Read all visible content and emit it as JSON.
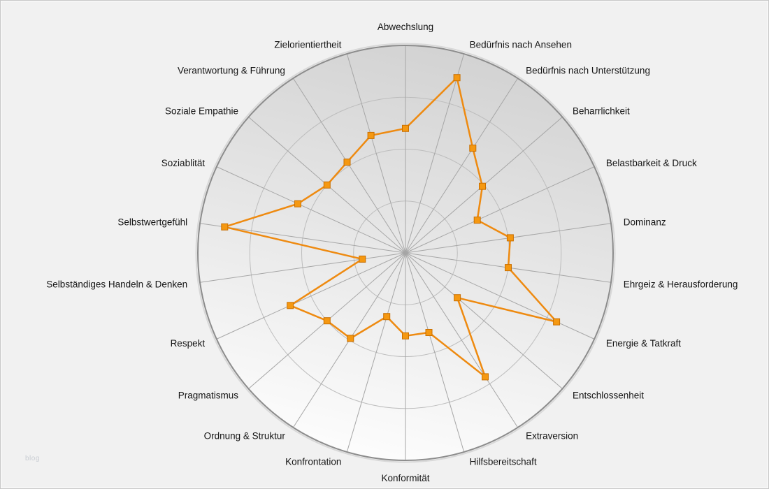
{
  "watermark": "blog",
  "chart_data": {
    "type": "radar",
    "title": "",
    "legend": "none",
    "grid": "on",
    "rings": 4,
    "ylim": [
      0,
      100
    ],
    "categories": [
      "Abwechslung",
      "Bedürfnis nach Ansehen",
      "Bedürfnis nach Unterstützung",
      "Beharrlichkeit",
      "Belastbarkeit & Druck",
      "Dominanz",
      "Ehrgeiz & Herausforderung",
      "Energie & Tatkraft",
      "Entschlossenheit",
      "Extraversion",
      "Hilfsbereitschaft",
      "Konformität",
      "Konfrontation",
      "Ordnung & Struktur",
      "Pragmatismus",
      "Respekt",
      "Selbständiges Handeln & Denken",
      "Selbstwertgefühl",
      "Soziablität",
      "Soziale Empathie",
      "Verantwortung & Führung",
      "Zielorientiertheit"
    ],
    "values": [
      60,
      88,
      60,
      49,
      38,
      51,
      50,
      80,
      33,
      71,
      40,
      40,
      32,
      49,
      50,
      61,
      21,
      88,
      57,
      50,
      52,
      59
    ],
    "colors": {
      "line": "#ee8a10",
      "marker_fill": "#f59811",
      "marker_stroke": "#c96f00",
      "grid": "#bdbdbd",
      "spoke": "#a6a6a6",
      "outer_ring": "#8c8c8c",
      "outer_ring_halo": "#d8d8d8",
      "disc_top": "#d2d2d2",
      "disc_bottom": "#fdfdfd",
      "page_bg": "#f1f1f1",
      "label": "#141414"
    }
  }
}
